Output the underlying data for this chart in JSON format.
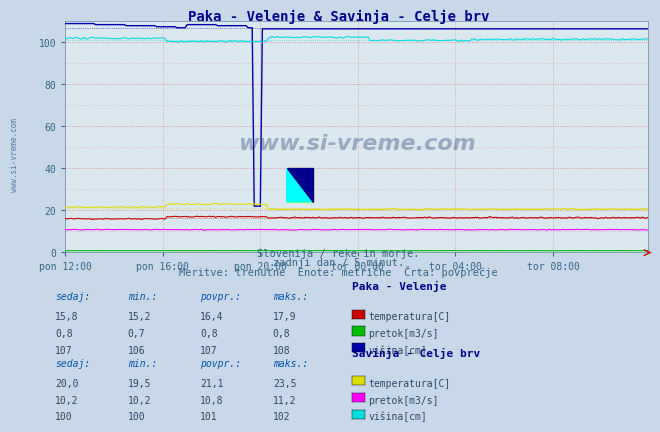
{
  "title": "Paka - Velenje & Savinja - Celje brv",
  "title_color": "#00008B",
  "bg_color": "#c8d8e8",
  "plot_bg_color": "#dce8f0",
  "grid_color_major": "#e08080",
  "grid_color_minor": "#d4b0b0",
  "grid_dot_color": "#c8a8a8",
  "n_points": 288,
  "x_tick_labels": [
    "pon 12:00",
    "pon 16:00",
    "pon 20:00",
    "tor 00:00",
    "tor 04:00",
    "tor 08:00"
  ],
  "x_tick_positions": [
    0,
    48,
    96,
    144,
    192,
    240
  ],
  "ylim": [
    0,
    110
  ],
  "yticks": [
    0,
    20,
    40,
    60,
    80,
    100
  ],
  "subtitle1": "Slovenija / reke in morje.",
  "subtitle2": "zadnji dan / 5 minut.",
  "subtitle3": "Meritve: trenutne  Enote: metrične  Črta: povprečje",
  "watermark": "www.si-vreme.com",
  "station1_name": "Paka - Velenje",
  "station1_temp_color": "#cc0000",
  "station1_pretok_color": "#00bb00",
  "station1_visina_color": "#0000aa",
  "station1_sedaj": [
    15.8,
    0.8,
    107
  ],
  "station1_min": [
    15.2,
    0.7,
    106
  ],
  "station1_povpr": [
    16.4,
    0.8,
    107
  ],
  "station1_maks": [
    17.9,
    0.8,
    108
  ],
  "station2_name": "Savinja - Celje brv",
  "station2_temp_color": "#dddd00",
  "station2_pretok_color": "#ff00ff",
  "station2_visina_color": "#00dddd",
  "station2_sedaj": [
    20.0,
    10.2,
    100
  ],
  "station2_min": [
    19.5,
    10.2,
    100
  ],
  "station2_povpr": [
    21.1,
    10.8,
    101
  ],
  "station2_maks": [
    23.5,
    11.2,
    102
  ]
}
